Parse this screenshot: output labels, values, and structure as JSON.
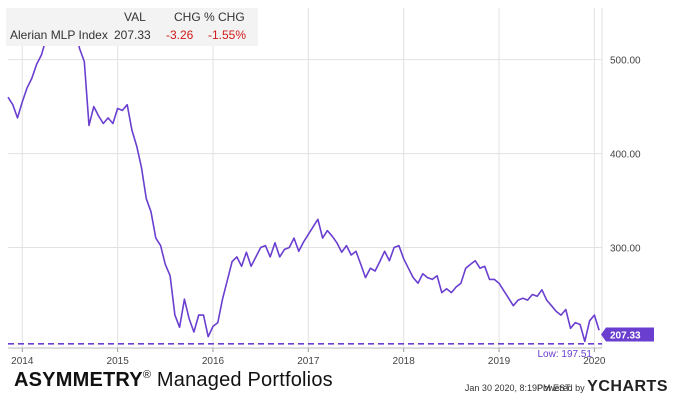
{
  "legend_table": {
    "headers": [
      "VAL",
      "CHG",
      "% CHG"
    ],
    "row": {
      "name": "Alerian MLP Index",
      "val": "207.33",
      "chg": "-3.26",
      "pct_chg": "-1.55%"
    }
  },
  "branding": {
    "name_bold": "ASYMMETRY",
    "mark": "®",
    "name_rest": " Managed Portfolios",
    "timestamp": "Jan 30 2020, 8:19PM EST.",
    "powered_by": "Powered by",
    "provider_logo_text": "YCHARTS"
  },
  "chart_data": {
    "type": "line",
    "series": [
      {
        "name": "Alerian MLP Index",
        "color": "#6a3fd0",
        "x": [
          2013.85,
          2013.9,
          2013.95,
          2014.0,
          2014.05,
          2014.1,
          2014.15,
          2014.2,
          2014.25,
          2014.3,
          2014.35,
          2014.4,
          2014.45,
          2014.5,
          2014.55,
          2014.6,
          2014.65,
          2014.7,
          2014.75,
          2014.8,
          2014.85,
          2014.9,
          2014.95,
          2015.0,
          2015.05,
          2015.1,
          2015.15,
          2015.2,
          2015.25,
          2015.3,
          2015.35,
          2015.4,
          2015.45,
          2015.5,
          2015.55,
          2015.6,
          2015.65,
          2015.7,
          2015.75,
          2015.8,
          2015.85,
          2015.9,
          2015.95,
          2016.0,
          2016.05,
          2016.1,
          2016.15,
          2016.2,
          2016.25,
          2016.3,
          2016.35,
          2016.4,
          2016.45,
          2016.5,
          2016.55,
          2016.6,
          2016.65,
          2016.7,
          2016.75,
          2016.8,
          2016.85,
          2016.9,
          2016.95,
          2017.0,
          2017.05,
          2017.1,
          2017.15,
          2017.2,
          2017.25,
          2017.3,
          2017.35,
          2017.4,
          2017.45,
          2017.5,
          2017.55,
          2017.6,
          2017.65,
          2017.7,
          2017.75,
          2017.8,
          2017.85,
          2017.9,
          2017.95,
          2018.0,
          2018.05,
          2018.1,
          2018.15,
          2018.2,
          2018.25,
          2018.3,
          2018.35,
          2018.4,
          2018.45,
          2018.5,
          2018.55,
          2018.6,
          2018.65,
          2018.7,
          2018.75,
          2018.8,
          2018.85,
          2018.9,
          2018.95,
          2019.0,
          2019.05,
          2019.1,
          2019.15,
          2019.2,
          2019.25,
          2019.3,
          2019.35,
          2019.4,
          2019.45,
          2019.5,
          2019.55,
          2019.6,
          2019.65,
          2019.7,
          2019.75,
          2019.8,
          2019.85,
          2019.9,
          2019.95,
          2020.0,
          2020.05
        ],
        "values": [
          460,
          452,
          438,
          455,
          470,
          480,
          495,
          505,
          522,
          535,
          530,
          520,
          528,
          520,
          538,
          512,
          498,
          430,
          450,
          440,
          432,
          438,
          432,
          448,
          446,
          452,
          425,
          408,
          385,
          352,
          338,
          310,
          302,
          282,
          270,
          228,
          215,
          245,
          224,
          210,
          228,
          228,
          205,
          216,
          220,
          245,
          265,
          285,
          290,
          280,
          295,
          280,
          290,
          300,
          302,
          290,
          305,
          290,
          298,
          300,
          310,
          296,
          306,
          314,
          322,
          330,
          310,
          318,
          312,
          305,
          295,
          302,
          292,
          296,
          282,
          268,
          278,
          275,
          285,
          296,
          286,
          300,
          302,
          288,
          278,
          268,
          262,
          272,
          268,
          266,
          270,
          252,
          256,
          252,
          258,
          262,
          278,
          282,
          286,
          278,
          280,
          266,
          266,
          262,
          254,
          246,
          238,
          244,
          246,
          244,
          250,
          248,
          255,
          244,
          238,
          232,
          228,
          234,
          214,
          220,
          218,
          200,
          222,
          228,
          212
        ],
        "line_width_note": "solid"
      }
    ],
    "x_ticks": [
      "2014",
      "2015",
      "2016",
      "2017",
      "2018",
      "2019",
      "2020"
    ],
    "x_tick_values": [
      2014,
      2015,
      2016,
      2017,
      2018,
      2019,
      2020
    ],
    "y_ticks": [
      "300.00",
      "400.00",
      "500.00"
    ],
    "y_tick_values": [
      300,
      400,
      500
    ],
    "xlim": [
      2013.85,
      2020.08
    ],
    "ylim": [
      193,
      555
    ],
    "grid": true,
    "reference_line": {
      "label": "Low: 197.51",
      "value": 197.51,
      "color": "#6a3fd0",
      "style": "dashed"
    },
    "last_value_badge": {
      "label": "207.33",
      "value": 207.33,
      "color": "#6a3fd0"
    }
  }
}
